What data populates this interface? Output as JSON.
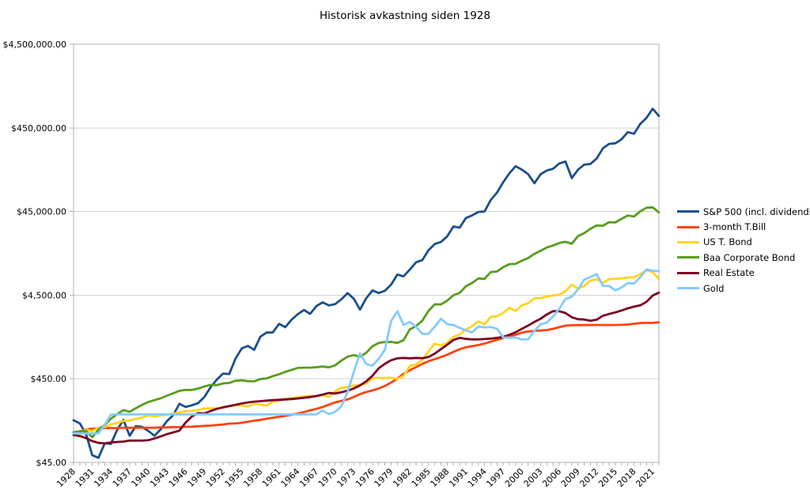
{
  "chart_data": {
    "type": "line",
    "title": "Historisk avkastning siden 1928",
    "y_scale": "log",
    "grid_color": "#d0d0d0",
    "axis_color": "#b0b0b0",
    "text_color": "#000000",
    "y_axis": {
      "ticks": [
        {
          "value": 45,
          "label": "$45.00"
        },
        {
          "value": 450,
          "label": "$450.00"
        },
        {
          "value": 4500,
          "label": "$4,500.00"
        },
        {
          "value": 45000,
          "label": "$45,000.00"
        },
        {
          "value": 450000,
          "label": "$450,000.00"
        },
        {
          "value": 4500000,
          "label": "$4,500,000.00"
        }
      ]
    },
    "x_axis": {
      "start_year": 1928,
      "end_year": 2022,
      "tick_interval": 1,
      "label_interval": 3,
      "labels": [
        "1928",
        "1931",
        "1934",
        "1937",
        "1940",
        "1943",
        "1946",
        "1949",
        "1952",
        "1955",
        "1958",
        "1961",
        "1964",
        "1967",
        "1970",
        "1973",
        "1976",
        "1979",
        "1982",
        "1985",
        "1988",
        "1991",
        "1994",
        "1997",
        "2000",
        "2003",
        "2006",
        "2009",
        "2012",
        "2015",
        "2018",
        "2021"
      ]
    },
    "series": [
      {
        "name": "S&P 500 (incl. dividends)",
        "color": "#1a4f8a",
        "values": [
          144,
          132,
          99,
          55,
          51,
          76,
          75,
          110,
          145,
          94,
          122,
          120,
          107,
          94,
          112,
          140,
          166,
          226,
          207,
          217,
          230,
          272,
          356,
          440,
          520,
          513,
          783,
          1038,
          1116,
          999,
          1436,
          1609,
          1614,
          2044,
          1864,
          2286,
          2661,
          2991,
          2693,
          3334,
          3694,
          3390,
          3510,
          4010,
          4762,
          4080,
          3024,
          4142,
          5129,
          4771,
          5082,
          6023,
          7934,
          7561,
          9105,
          11139,
          11824,
          15517,
          18386,
          19455,
          22672,
          29809,
          28895,
          37632,
          40452,
          44483,
          45073,
          61838,
          75864,
          100977,
          129592,
          156658,
          142509,
          125622,
          98028,
          125824,
          139341,
          146078,
          168884,
          178147,
          113030,
          142345,
          163442,
          166872,
          193388,
          255563,
          290115,
          294119,
          328736,
          399772,
          382862,
          502351,
          592875,
          761711,
          624637
        ]
      },
      {
        "name": "3-month T.Bill",
        "color": "#ff420e",
        "values": [
          103,
          106,
          111,
          114,
          115,
          116,
          116,
          116,
          117,
          117,
          117,
          117,
          117,
          117,
          118,
          118,
          119,
          119,
          120,
          120,
          122,
          123,
          124,
          126,
          128,
          131,
          132,
          134,
          138,
          142,
          145,
          150,
          154,
          158,
          162,
          167,
          173,
          180,
          189,
          197,
          207,
          221,
          235,
          245,
          255,
          273,
          295,
          312,
          327,
          344,
          369,
          406,
          453,
          516,
          571,
          620,
          679,
          730,
          774,
          818,
          873,
          944,
          1015,
          1069,
          1106,
          1139,
          1187,
          1252,
          1315,
          1382,
          1448,
          1515,
          1603,
          1657,
          1684,
          1701,
          1724,
          1779,
          1863,
          1944,
          1970,
          1973,
          1976,
          1977,
          1979,
          1980,
          1981,
          1982,
          1988,
          2006,
          2045,
          2087,
          2095,
          2096,
          2138
        ]
      },
      {
        "name": "US T. Bond",
        "color": "#ffd320",
        "values": [
          101,
          105,
          110,
          107,
          117,
          119,
          128,
          134,
          141,
          143,
          149,
          155,
          164,
          160,
          164,
          168,
          172,
          179,
          184,
          186,
          190,
          199,
          199,
          199,
          203,
          212,
          219,
          216,
          211,
          225,
          221,
          215,
          240,
          245,
          259,
          263,
          273,
          275,
          283,
          278,
          287,
          273,
          319,
          350,
          360,
          373,
          381,
          394,
          457,
          463,
          460,
          463,
          449,
          486,
          645,
          666,
          757,
          952,
          1183,
          1124,
          1217,
          1432,
          1521,
          1749,
          1913,
          2185,
          2009,
          2481,
          2516,
          2766,
          3179,
          2917,
          3403,
          3593,
          4136,
          4152,
          4338,
          4463,
          4550,
          5015,
          6023,
          5353,
          5806,
          6737,
          6937,
          6306,
          6984,
          7073,
          7122,
          7321,
          7320,
          8026,
          8935,
          8540,
          7018
        ]
      },
      {
        "name": "Baa Corporate Bond",
        "color": "#579d1c",
        "values": [
          103,
          106,
          107,
          90,
          111,
          126,
          150,
          170,
          190,
          182,
          200,
          220,
          238,
          250,
          263,
          283,
          302,
          323,
          331,
          331,
          344,
          364,
          380,
          378,
          396,
          402,
          426,
          432,
          422,
          420,
          447,
          455,
          485,
          509,
          545,
          574,
          608,
          611,
          611,
          620,
          630,
          617,
          652,
          743,
          828,
          864,
          825,
          920,
          1102,
          1205,
          1240,
          1243,
          1206,
          1303,
          1759,
          1917,
          2231,
          2921,
          3500,
          3491,
          3864,
          4491,
          4796,
          5750,
          6290,
          7119,
          7046,
          8505,
          8624,
          9741,
          10576,
          10646,
          11611,
          12519,
          14044,
          15301,
          16721,
          17669,
          18920,
          19546,
          18555,
          22884,
          24795,
          27914,
          30739,
          30413,
          33570,
          33335,
          36792,
          40368,
          39254,
          45272,
          49985,
          50450,
          43900
        ]
      },
      {
        "name": "Real Estate",
        "color": "#7e0021",
        "values": [
          96,
          93,
          88,
          81,
          77,
          76,
          78,
          79,
          80,
          82,
          82,
          82,
          83,
          87,
          92,
          98,
          103,
          108,
          135,
          160,
          175,
          173,
          185,
          197,
          205,
          212,
          220,
          228,
          235,
          240,
          243,
          247,
          250,
          252,
          255,
          258,
          262,
          267,
          272,
          280,
          292,
          305,
          300,
          310,
          325,
          345,
          375,
          420,
          490,
          600,
          680,
          750,
          790,
          800,
          790,
          800,
          795,
          820,
          900,
          1020,
          1150,
          1310,
          1390,
          1350,
          1330,
          1330,
          1345,
          1360,
          1390,
          1430,
          1510,
          1620,
          1780,
          1950,
          2150,
          2350,
          2650,
          2900,
          2890,
          2750,
          2450,
          2320,
          2300,
          2230,
          2290,
          2550,
          2680,
          2800,
          2950,
          3130,
          3280,
          3400,
          3750,
          4450,
          4820
        ]
      },
      {
        "name": "Gold",
        "color": "#83caff",
        "values": [
          100,
          100,
          100,
          100,
          100,
          127,
          168,
          169,
          169,
          169,
          169,
          169,
          169,
          169,
          169,
          169,
          169,
          169,
          169,
          169,
          169,
          169,
          169,
          169,
          169,
          169,
          169,
          169,
          169,
          169,
          169,
          169,
          169,
          169,
          169,
          169,
          169,
          169,
          169,
          169,
          188,
          170,
          181,
          210,
          314,
          543,
          904,
          674,
          647,
          779,
          1007,
          2221,
          2878,
          1984,
          2150,
          1884,
          1549,
          1552,
          1893,
          2353,
          2025,
          1980,
          1829,
          1709,
          1613,
          1896,
          1854,
          1872,
          1787,
          1404,
          1392,
          1404,
          1328,
          1338,
          1680,
          2014,
          2121,
          2511,
          3087,
          4054,
          4304,
          5261,
          6874,
          7407,
          8051,
          5828,
          5802,
          5129,
          5572,
          6273,
          6199,
          7369,
          9132,
          8806,
          8760
        ]
      }
    ]
  }
}
